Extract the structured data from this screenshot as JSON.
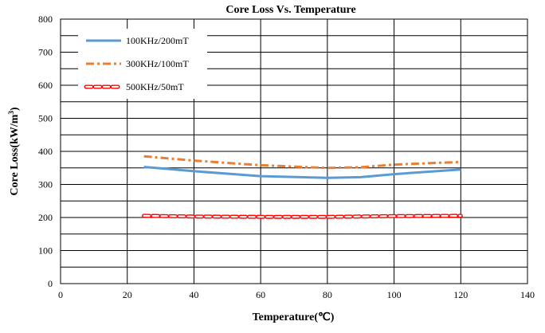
{
  "chart_data": {
    "type": "line",
    "title": "Core Loss Vs. Temperature",
    "xlabel": "Temperature(℃)",
    "ylabel_prefix": "Core Loss(kW/m",
    "ylabel_sup": "3",
    "ylabel_suffix": ")",
    "xlim": [
      0,
      140
    ],
    "ylim": [
      0,
      800
    ],
    "x_major_ticks": [
      0,
      20,
      40,
      60,
      80,
      100,
      120,
      140
    ],
    "y_major_ticks": [
      0,
      100,
      200,
      300,
      400,
      500,
      600,
      700,
      800
    ],
    "grid": {
      "x_step": 20,
      "y_step": 50
    },
    "legend_position": "top-left",
    "series": [
      {
        "name": "100KHz/200mT",
        "color": "#5b9bd5",
        "style": "solid",
        "x": [
          25,
          40,
          60,
          80,
          90,
          100,
          120
        ],
        "y": [
          353,
          340,
          325,
          320,
          322,
          331,
          345
        ]
      },
      {
        "name": "300KHz/100mT",
        "color": "#ed7d31",
        "style": "dash-dot",
        "x": [
          25,
          40,
          60,
          80,
          90,
          100,
          120
        ],
        "y": [
          385,
          372,
          358,
          350,
          352,
          360,
          368
        ]
      },
      {
        "name": "500KHz/50mT",
        "color": "#ff0000",
        "style": "capsule",
        "x": [
          25,
          40,
          60,
          80,
          100,
          120
        ],
        "y": [
          205,
          203,
          202,
          202,
          204,
          205
        ]
      }
    ]
  }
}
